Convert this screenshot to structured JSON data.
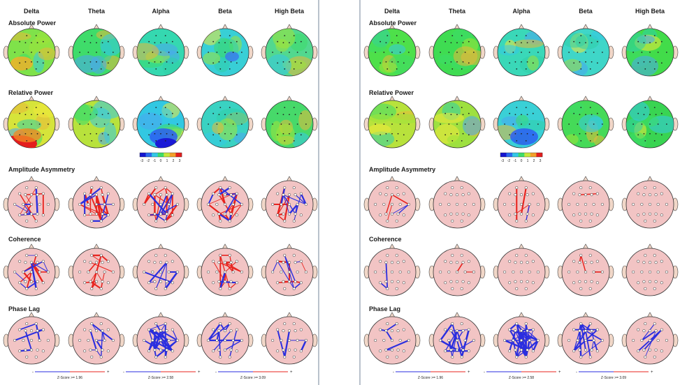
{
  "bands": [
    "Delta",
    "Theta",
    "Alpha",
    "Beta",
    "High Beta"
  ],
  "rows": [
    "Absolute Power",
    "Relative Power",
    "Amplitude Asymmetry",
    "Coherence",
    "Phase Lag"
  ],
  "colorbar_ticks": [
    "-3",
    "-2",
    "-1",
    "0",
    "1",
    "2",
    "3"
  ],
  "zscore_labels": [
    "Z-Score >= 1.96",
    "Z-Score >= 2.58",
    "Z-Score >= 3.09"
  ],
  "colors": {
    "head_fill_connect": "#f2c4c4",
    "excess": "#e8231e",
    "deficit": "#2a2ee0",
    "head_outline": "#333333"
  },
  "panels": [
    {
      "id": "left"
    },
    {
      "id": "right"
    }
  ]
}
